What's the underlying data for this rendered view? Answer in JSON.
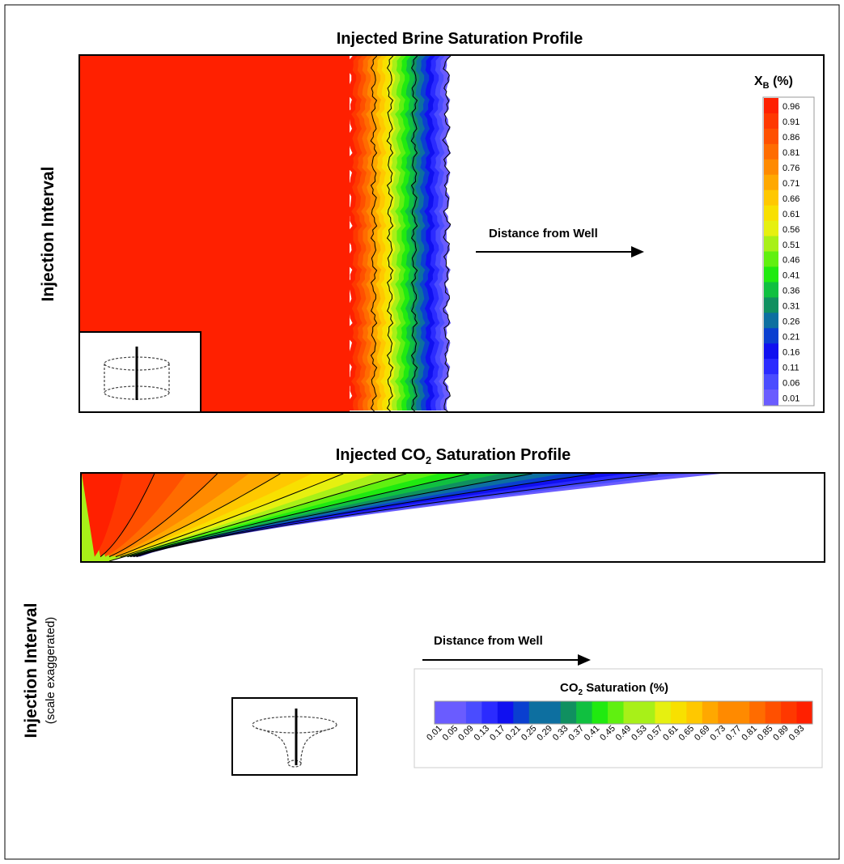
{
  "top_panel": {
    "title": "Injected Brine Saturation Profile",
    "y_label": "Injection Interval",
    "arrow_label": "Distance from Well",
    "legend": {
      "title_main": "X",
      "title_sub": "B",
      "title_suffix": " (%)",
      "ticks": [
        "0.96",
        "0.91",
        "0.86",
        "0.81",
        "0.76",
        "0.71",
        "0.66",
        "0.61",
        "0.56",
        "0.51",
        "0.46",
        "0.41",
        "0.36",
        "0.31",
        "0.26",
        "0.21",
        "0.16",
        "0.11",
        "0.06",
        "0.01"
      ]
    },
    "inset_icon": "cylinder-well-icon"
  },
  "bottom_panel": {
    "title_prefix": "Injected CO",
    "title_sub": "2",
    "title_suffix": " Saturation Profile",
    "y_label": "Injection Interval",
    "y_sublabel": "(scale exaggerated)",
    "arrow_label": "Distance from Well",
    "legend": {
      "title_prefix": "CO",
      "title_sub": "2",
      "title_suffix": " Saturation (%)",
      "ticks": [
        "0.01",
        "0.05",
        "0.09",
        "0.13",
        "0.17",
        "0.21",
        "0.25",
        "0.29",
        "0.33",
        "0.37",
        "0.41",
        "0.45",
        "0.49",
        "0.53",
        "0.57",
        "0.61",
        "0.65",
        "0.69",
        "0.73",
        "0.77",
        "0.81",
        "0.85",
        "0.89",
        "0.93"
      ]
    },
    "inset_icon": "funnel-plume-well-icon"
  },
  "colors": {
    "scale": [
      "#6a5cff",
      "#4a4cff",
      "#2b2bff",
      "#1010f0",
      "#0a3fd0",
      "#0d6fa0",
      "#109060",
      "#10c040",
      "#20ea10",
      "#60f010",
      "#a8f018",
      "#e6f010",
      "#f8e000",
      "#ffc800",
      "#ffa800",
      "#ff8a00",
      "#ff6c00",
      "#ff5000",
      "#ff3800",
      "#ff2000"
    ],
    "frame": "#000000",
    "background": "#ffffff"
  }
}
